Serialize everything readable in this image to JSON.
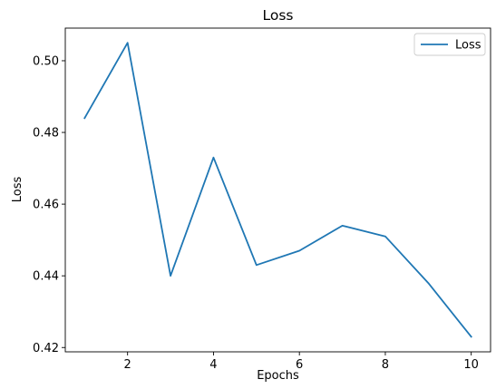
{
  "chart_data": {
    "type": "line",
    "title": "Loss",
    "xlabel": "Epochs",
    "ylabel": "Loss",
    "x": [
      1,
      2,
      3,
      4,
      5,
      6,
      7,
      8,
      9,
      10
    ],
    "series": [
      {
        "name": "Loss",
        "color": "#1f77b4",
        "values": [
          0.484,
          0.505,
          0.44,
          0.473,
          0.443,
          0.447,
          0.454,
          0.451,
          0.438,
          0.423
        ]
      }
    ],
    "xlim": [
      0.55,
      10.45
    ],
    "ylim": [
      0.4188,
      0.5091
    ],
    "xticks": [
      2,
      4,
      6,
      8,
      10
    ],
    "xtick_labels": [
      "2",
      "4",
      "6",
      "8",
      "10"
    ],
    "yticks": [
      0.42,
      0.44,
      0.46,
      0.48,
      0.5
    ],
    "ytick_labels": [
      "0.42",
      "0.44",
      "0.46",
      "0.48",
      "0.50"
    ],
    "grid": false,
    "legend_position": "top-right"
  }
}
